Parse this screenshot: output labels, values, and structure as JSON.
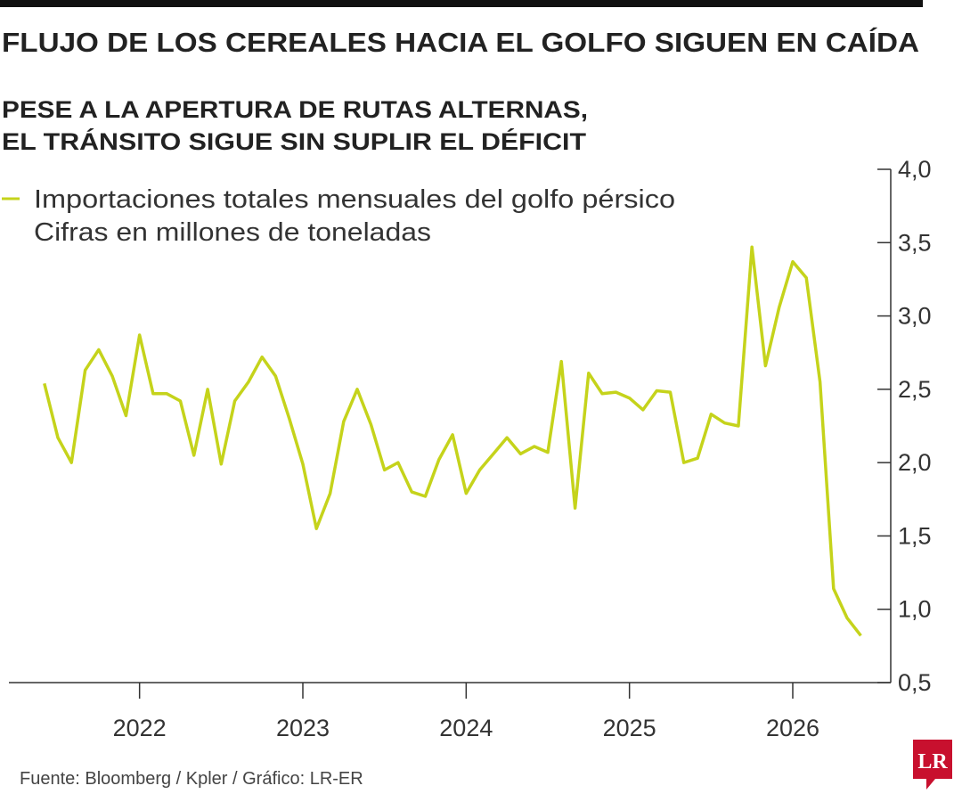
{
  "chart_data": {
    "type": "line",
    "title": "FLUJO DE LOS CEREALES HACIA EL GOLFO SIGUEN EN CAÍDA",
    "subtitle": [
      "PESE A LA APERTURA DE RUTAS ALTERNAS,",
      "EL TRÁNSITO SIGUE SIN SUPLIR EL DÉFICIT"
    ],
    "unit_note": "Cifras en millones de toneladas",
    "source": "Fuente: Bloomberg / Kpler / Gráfico: LR-ER",
    "logo": "LR",
    "x": [
      2021.417,
      2021.5,
      2021.583,
      2021.667,
      2021.75,
      2021.833,
      2021.917,
      2022,
      2022.083,
      2022.167,
      2022.25,
      2022.333,
      2022.417,
      2022.5,
      2022.583,
      2022.667,
      2022.75,
      2022.833,
      2022.917,
      2023,
      2023.083,
      2023.167,
      2023.25,
      2023.333,
      2023.417,
      2023.5,
      2023.583,
      2023.667,
      2023.75,
      2023.833,
      2023.917,
      2024,
      2024.083,
      2024.167,
      2024.25,
      2024.333,
      2024.417,
      2024.5,
      2024.583,
      2024.667,
      2024.75,
      2024.833,
      2024.917,
      2025,
      2025.083,
      2025.167,
      2025.25,
      2025.333,
      2025.417,
      2025.5,
      2025.583,
      2025.667,
      2025.75,
      2025.833,
      2025.917,
      2026,
      2026.083,
      2026.167,
      2026.25,
      2026.333,
      2026.417
    ],
    "series": [
      {
        "name": "Importaciones totales mensuales del golfo pérsico",
        "color": "#c5d31b",
        "values": [
          2.54,
          2.17,
          2.0,
          2.63,
          2.77,
          2.59,
          2.32,
          2.87,
          2.47,
          2.47,
          2.42,
          2.05,
          2.5,
          1.99,
          2.42,
          2.55,
          2.72,
          2.59,
          2.3,
          1.99,
          1.55,
          1.79,
          2.28,
          2.5,
          2.26,
          1.95,
          2.0,
          1.8,
          1.77,
          2.02,
          2.19,
          1.79,
          1.95,
          2.06,
          2.17,
          2.06,
          2.11,
          2.07,
          2.69,
          1.69,
          2.61,
          2.47,
          2.48,
          2.44,
          2.36,
          2.49,
          2.48,
          2.0,
          2.03,
          2.33,
          2.27,
          2.25,
          3.47,
          2.66,
          3.06,
          3.37,
          3.26,
          2.55,
          1.14,
          0.94,
          0.82
        ]
      }
    ],
    "xlim": [
      2021.2,
      2026.6
    ],
    "xticks": [
      2022,
      2023,
      2024,
      2025,
      2026
    ],
    "ylim": [
      0.5,
      4.0
    ],
    "yticks": [
      {
        "value": 0.5,
        "label": "0,5"
      },
      {
        "value": 1.0,
        "label": "1,0"
      },
      {
        "value": 1.5,
        "label": "1,5"
      },
      {
        "value": 2.0,
        "label": "2,0"
      },
      {
        "value": 2.5,
        "label": "2,5"
      },
      {
        "value": 3.0,
        "label": "3,0"
      },
      {
        "value": 3.5,
        "label": "3,5"
      },
      {
        "value": 4.0,
        "label": "4,0"
      }
    ],
    "grid": false
  }
}
